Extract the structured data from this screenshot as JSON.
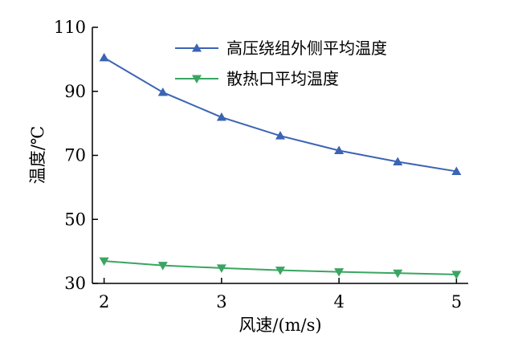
{
  "chart_data": {
    "type": "line",
    "xlabel": "风速/(m/s)",
    "ylabel": "温度/℃",
    "xlim": [
      1.9,
      5.1
    ],
    "ylim": [
      30,
      110
    ],
    "xticks": [
      2,
      3,
      4,
      5
    ],
    "yticks": [
      30,
      50,
      70,
      90,
      110
    ],
    "x": [
      2,
      2.5,
      3,
      3.5,
      4,
      4.5,
      5
    ],
    "series": [
      {
        "name": "高压绕组外侧平均温度",
        "values": [
          100.5,
          89.7,
          81.9,
          76.1,
          71.5,
          68.0,
          65.0
        ],
        "color": "#3c64b4",
        "marker": "triangle-up"
      },
      {
        "name": "散热口平均温度",
        "values": [
          37.0,
          35.6,
          34.8,
          34.1,
          33.6,
          33.2,
          32.8
        ],
        "color": "#3aa561",
        "marker": "triangle-down"
      }
    ],
    "legend_position": "top-right",
    "grid": false
  }
}
